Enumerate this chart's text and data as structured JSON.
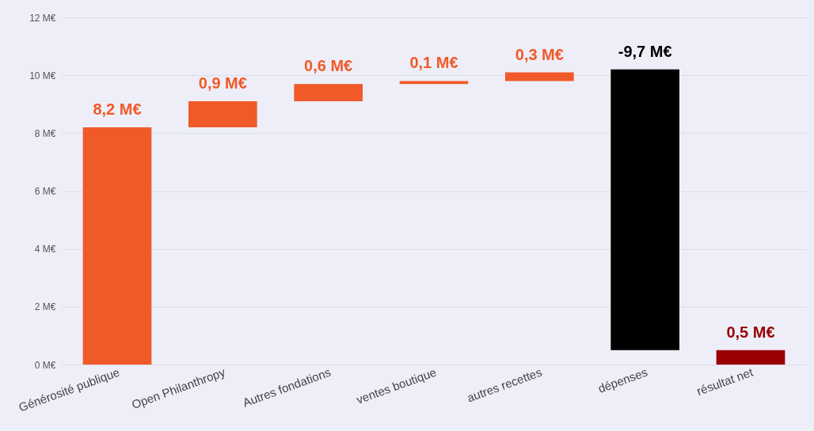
{
  "chart_data": {
    "type": "bar",
    "categories": [
      "Générosité publique",
      "Open Philanthropy",
      "Autres fondations",
      "ventes boutique",
      "autres recettes",
      "dépenses",
      "résultat net"
    ],
    "values": [
      8.2,
      0.9,
      0.6,
      0.1,
      0.3,
      -9.7,
      0.5
    ],
    "base": [
      0,
      8.2,
      9.1,
      9.7,
      9.8,
      10.2,
      0
    ],
    "colors": [
      "#f05a28",
      "#f05a28",
      "#f05a28",
      "#f05a28",
      "#f05a28",
      "#000000",
      "#990000"
    ],
    "value_labels": [
      "8,2 M€",
      "0,9 M€",
      "0,6 M€",
      "0,1 M€",
      "0,3 M€",
      "-9,7 M€",
      "0,5 M€"
    ],
    "ylim": [
      0,
      12
    ],
    "yticks": [
      {
        "value": 0,
        "label": "0 M€"
      },
      {
        "value": 2,
        "label": "2 M€"
      },
      {
        "value": 4,
        "label": "4 M€"
      },
      {
        "value": 6,
        "label": "6 M€"
      },
      {
        "value": 8,
        "label": "8 M€"
      },
      {
        "value": 10,
        "label": "10 M€"
      },
      {
        "value": 12,
        "label": "12 M€"
      }
    ],
    "grid": "y"
  }
}
